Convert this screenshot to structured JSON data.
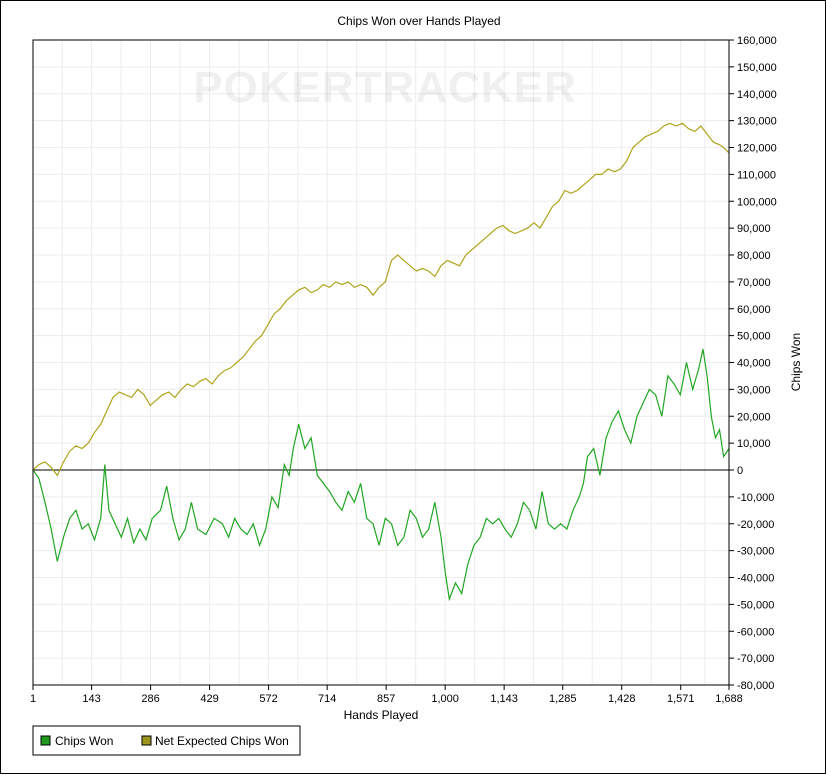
{
  "chart_data": {
    "type": "line",
    "title": "Chips Won over Hands Played",
    "xlabel": "Hands Played",
    "ylabel": "Chips Won",
    "watermark": "POKERTRACKER",
    "xlim": [
      1,
      1688
    ],
    "ylim": [
      -80000,
      160000
    ],
    "x_ticks": [
      "1",
      "143",
      "286",
      "429",
      "572",
      "714",
      "857",
      "1,000",
      "1,143",
      "1,285",
      "1,428",
      "1,571",
      "1,688"
    ],
    "x_tick_values": [
      1,
      143,
      286,
      429,
      572,
      714,
      857,
      1000,
      1143,
      1285,
      1428,
      1571,
      1688
    ],
    "y_ticks": [
      "160,000",
      "150,000",
      "140,000",
      "130,000",
      "120,000",
      "110,000",
      "100,000",
      "90,000",
      "80,000",
      "70,000",
      "60,000",
      "50,000",
      "40,000",
      "30,000",
      "20,000",
      "10,000",
      "0",
      "-10,000",
      "-20,000",
      "-30,000",
      "-40,000",
      "-50,000",
      "-60,000",
      "-70,000",
      "-80,000"
    ],
    "y_tick_values": [
      160000,
      150000,
      140000,
      130000,
      120000,
      110000,
      100000,
      90000,
      80000,
      70000,
      60000,
      50000,
      40000,
      30000,
      20000,
      10000,
      0,
      -10000,
      -20000,
      -30000,
      -40000,
      -50000,
      -60000,
      -70000,
      -80000
    ],
    "grid": true,
    "legend_position": "bottom-left",
    "series": [
      {
        "name": "Chips Won",
        "color": "#22a622",
        "legend_color": "#1f9a1f",
        "points": [
          [
            1,
            0
          ],
          [
            15,
            -3000
          ],
          [
            30,
            -12000
          ],
          [
            45,
            -22000
          ],
          [
            60,
            -34000
          ],
          [
            75,
            -25000
          ],
          [
            90,
            -18000
          ],
          [
            105,
            -15000
          ],
          [
            120,
            -22000
          ],
          [
            135,
            -20000
          ],
          [
            150,
            -26000
          ],
          [
            165,
            -18000
          ],
          [
            175,
            2000
          ],
          [
            185,
            -15000
          ],
          [
            200,
            -20000
          ],
          [
            215,
            -25000
          ],
          [
            230,
            -18000
          ],
          [
            245,
            -27000
          ],
          [
            260,
            -22000
          ],
          [
            275,
            -26000
          ],
          [
            290,
            -18000
          ],
          [
            310,
            -15000
          ],
          [
            325,
            -6000
          ],
          [
            340,
            -18000
          ],
          [
            355,
            -26000
          ],
          [
            370,
            -22000
          ],
          [
            385,
            -12000
          ],
          [
            400,
            -22000
          ],
          [
            420,
            -24000
          ],
          [
            440,
            -18000
          ],
          [
            460,
            -20000
          ],
          [
            475,
            -25000
          ],
          [
            490,
            -18000
          ],
          [
            505,
            -22000
          ],
          [
            520,
            -24000
          ],
          [
            535,
            -20000
          ],
          [
            550,
            -28000
          ],
          [
            565,
            -22000
          ],
          [
            580,
            -10000
          ],
          [
            595,
            -14000
          ],
          [
            610,
            2000
          ],
          [
            622,
            -2000
          ],
          [
            632,
            8000
          ],
          [
            645,
            17000
          ],
          [
            660,
            8000
          ],
          [
            675,
            12000
          ],
          [
            690,
            -2000
          ],
          [
            705,
            -5000
          ],
          [
            720,
            -8000
          ],
          [
            735,
            -12000
          ],
          [
            750,
            -15000
          ],
          [
            765,
            -8000
          ],
          [
            780,
            -12000
          ],
          [
            795,
            -5000
          ],
          [
            810,
            -18000
          ],
          [
            825,
            -20000
          ],
          [
            840,
            -28000
          ],
          [
            855,
            -18000
          ],
          [
            870,
            -20000
          ],
          [
            885,
            -28000
          ],
          [
            900,
            -25000
          ],
          [
            915,
            -15000
          ],
          [
            930,
            -18000
          ],
          [
            945,
            -25000
          ],
          [
            960,
            -22000
          ],
          [
            975,
            -12000
          ],
          [
            990,
            -25000
          ],
          [
            1000,
            -38000
          ],
          [
            1010,
            -48000
          ],
          [
            1025,
            -42000
          ],
          [
            1040,
            -46000
          ],
          [
            1055,
            -35000
          ],
          [
            1070,
            -28000
          ],
          [
            1085,
            -25000
          ],
          [
            1100,
            -18000
          ],
          [
            1115,
            -20000
          ],
          [
            1130,
            -18000
          ],
          [
            1145,
            -22000
          ],
          [
            1160,
            -25000
          ],
          [
            1175,
            -20000
          ],
          [
            1190,
            -12000
          ],
          [
            1205,
            -15000
          ],
          [
            1220,
            -22000
          ],
          [
            1235,
            -8000
          ],
          [
            1250,
            -20000
          ],
          [
            1265,
            -22000
          ],
          [
            1280,
            -20000
          ],
          [
            1295,
            -22000
          ],
          [
            1310,
            -15000
          ],
          [
            1325,
            -10000
          ],
          [
            1335,
            -5000
          ],
          [
            1345,
            5000
          ],
          [
            1360,
            8000
          ],
          [
            1375,
            -2000
          ],
          [
            1390,
            12000
          ],
          [
            1405,
            18000
          ],
          [
            1420,
            22000
          ],
          [
            1435,
            15000
          ],
          [
            1450,
            10000
          ],
          [
            1465,
            20000
          ],
          [
            1480,
            25000
          ],
          [
            1495,
            30000
          ],
          [
            1510,
            28000
          ],
          [
            1525,
            20000
          ],
          [
            1540,
            35000
          ],
          [
            1555,
            32000
          ],
          [
            1570,
            28000
          ],
          [
            1585,
            40000
          ],
          [
            1600,
            30000
          ],
          [
            1615,
            38000
          ],
          [
            1625,
            45000
          ],
          [
            1635,
            35000
          ],
          [
            1645,
            20000
          ],
          [
            1655,
            12000
          ],
          [
            1665,
            15000
          ],
          [
            1675,
            5000
          ],
          [
            1688,
            8000
          ]
        ]
      },
      {
        "name": "Net Expected Chips Won",
        "color": "#b0a31b",
        "legend_color": "#9e961c",
        "points": [
          [
            1,
            0
          ],
          [
            15,
            2000
          ],
          [
            30,
            3000
          ],
          [
            45,
            1000
          ],
          [
            60,
            -2000
          ],
          [
            75,
            3000
          ],
          [
            90,
            7000
          ],
          [
            105,
            9000
          ],
          [
            120,
            8000
          ],
          [
            135,
            10000
          ],
          [
            150,
            14000
          ],
          [
            165,
            17000
          ],
          [
            180,
            22000
          ],
          [
            195,
            27000
          ],
          [
            210,
            29000
          ],
          [
            225,
            28000
          ],
          [
            240,
            27000
          ],
          [
            255,
            30000
          ],
          [
            270,
            28000
          ],
          [
            285,
            24000
          ],
          [
            300,
            26000
          ],
          [
            315,
            28000
          ],
          [
            330,
            29000
          ],
          [
            345,
            27000
          ],
          [
            360,
            30000
          ],
          [
            375,
            32000
          ],
          [
            390,
            31000
          ],
          [
            405,
            33000
          ],
          [
            420,
            34000
          ],
          [
            435,
            32000
          ],
          [
            450,
            35000
          ],
          [
            465,
            37000
          ],
          [
            480,
            38000
          ],
          [
            495,
            40000
          ],
          [
            510,
            42000
          ],
          [
            525,
            45000
          ],
          [
            540,
            48000
          ],
          [
            555,
            50000
          ],
          [
            570,
            54000
          ],
          [
            585,
            58000
          ],
          [
            600,
            60000
          ],
          [
            615,
            63000
          ],
          [
            630,
            65000
          ],
          [
            645,
            67000
          ],
          [
            660,
            68000
          ],
          [
            675,
            66000
          ],
          [
            690,
            67000
          ],
          [
            705,
            69000
          ],
          [
            720,
            68000
          ],
          [
            735,
            70000
          ],
          [
            750,
            69000
          ],
          [
            765,
            70000
          ],
          [
            780,
            68000
          ],
          [
            795,
            69000
          ],
          [
            810,
            68000
          ],
          [
            825,
            65000
          ],
          [
            840,
            68000
          ],
          [
            855,
            70000
          ],
          [
            870,
            78000
          ],
          [
            885,
            80000
          ],
          [
            900,
            78000
          ],
          [
            915,
            76000
          ],
          [
            930,
            74000
          ],
          [
            945,
            75000
          ],
          [
            960,
            74000
          ],
          [
            975,
            72000
          ],
          [
            990,
            76000
          ],
          [
            1005,
            78000
          ],
          [
            1020,
            77000
          ],
          [
            1035,
            76000
          ],
          [
            1050,
            80000
          ],
          [
            1065,
            82000
          ],
          [
            1080,
            84000
          ],
          [
            1095,
            86000
          ],
          [
            1110,
            88000
          ],
          [
            1125,
            90000
          ],
          [
            1140,
            91000
          ],
          [
            1155,
            89000
          ],
          [
            1170,
            88000
          ],
          [
            1185,
            89000
          ],
          [
            1200,
            90000
          ],
          [
            1215,
            92000
          ],
          [
            1230,
            90000
          ],
          [
            1245,
            94000
          ],
          [
            1260,
            98000
          ],
          [
            1275,
            100000
          ],
          [
            1290,
            104000
          ],
          [
            1305,
            103000
          ],
          [
            1320,
            104000
          ],
          [
            1335,
            106000
          ],
          [
            1350,
            108000
          ],
          [
            1365,
            110000
          ],
          [
            1380,
            110000
          ],
          [
            1395,
            112000
          ],
          [
            1410,
            111000
          ],
          [
            1425,
            112000
          ],
          [
            1440,
            115000
          ],
          [
            1455,
            120000
          ],
          [
            1470,
            122000
          ],
          [
            1485,
            124000
          ],
          [
            1500,
            125000
          ],
          [
            1515,
            126000
          ],
          [
            1530,
            128000
          ],
          [
            1545,
            129000
          ],
          [
            1560,
            128000
          ],
          [
            1575,
            129000
          ],
          [
            1590,
            127000
          ],
          [
            1605,
            126000
          ],
          [
            1620,
            128000
          ],
          [
            1635,
            125000
          ],
          [
            1650,
            122000
          ],
          [
            1665,
            121000
          ],
          [
            1675,
            120000
          ],
          [
            1688,
            118000
          ]
        ]
      }
    ]
  }
}
